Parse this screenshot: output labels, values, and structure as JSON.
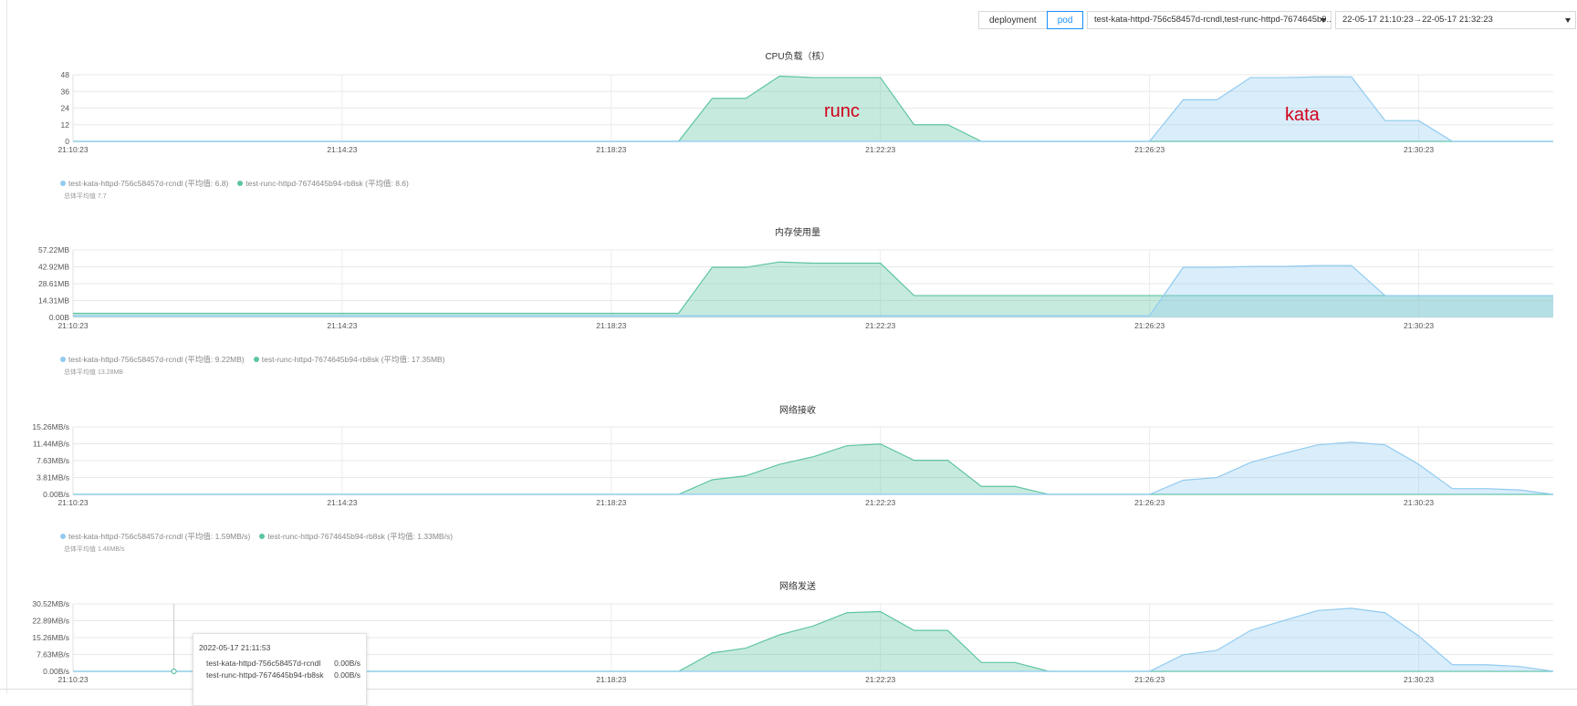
{
  "controls": {
    "segment": [
      {
        "label": "deployment",
        "active": false
      },
      {
        "label": "pod",
        "active": true
      }
    ],
    "pod_select": "test-kata-httpd-756c58457d-rcndl,test-runc-httpd-7674645b9...",
    "time_range": "22-05-17 21:10:23→22-05-17 21:32:23"
  },
  "colors": {
    "kata": "#91cbf0",
    "runc": "#5ec4a2"
  },
  "chart_data": [
    {
      "type": "area",
      "title": "CPU负载（核）",
      "x_minutes": [
        0,
        7.5,
        15,
        22.5,
        30,
        37.5,
        45,
        52.5,
        60,
        67.5,
        75,
        82.5,
        90,
        97.5,
        105,
        112.5,
        120,
        127.5,
        135,
        142.5,
        150,
        157.5,
        165,
        172.5,
        180,
        187.5,
        195,
        202.5,
        210,
        217.5,
        225,
        232.5,
        240,
        247.5,
        255,
        262.5,
        270,
        277.5,
        285,
        292.5,
        300,
        307.5,
        315,
        322.5,
        330
      ],
      "xticks": [
        "21:10:23",
        "21:14:23",
        "21:18:23",
        "21:22:23",
        "21:26:23",
        "21:30:23"
      ],
      "xtick_minutes": [
        0,
        4,
        8,
        12,
        16,
        20
      ],
      "yticks": [
        "0",
        "12",
        "24",
        "36",
        "48"
      ],
      "ymax": 48,
      "series": [
        {
          "name": "test-kata-httpd-756c58457d-rcndl",
          "values": []
        },
        {
          "name": "test-runc-httpd-7674645b94-rb8sk",
          "values": []
        }
      ],
      "kata_pts": [
        [
          0,
          0
        ],
        [
          16,
          0
        ],
        [
          16.5,
          30
        ],
        [
          17,
          30
        ],
        [
          17.5,
          46
        ],
        [
          18,
          46
        ],
        [
          18.5,
          46.5
        ],
        [
          19,
          46.5
        ],
        [
          19.5,
          15
        ],
        [
          20,
          15
        ],
        [
          20.5,
          0
        ],
        [
          22,
          0
        ]
      ],
      "runc_pts": [
        [
          0,
          0
        ],
        [
          9,
          0
        ],
        [
          9.5,
          31
        ],
        [
          10,
          31
        ],
        [
          10.5,
          47
        ],
        [
          11,
          46
        ],
        [
          11.5,
          46
        ],
        [
          12,
          46
        ],
        [
          12.5,
          12
        ],
        [
          13,
          12
        ],
        [
          13.5,
          0
        ],
        [
          22,
          0
        ]
      ],
      "legend": [
        {
          "text": "test-kata-httpd-756c58457d-rcndl (平均值: 6.8)"
        },
        {
          "text": "test-runc-httpd-7674645b94-rb8sk (平均值: 8.6)"
        }
      ],
      "overall_avg": "总体平均值 7.7"
    },
    {
      "type": "area",
      "title": "内存使用量",
      "xticks": [
        "21:10:23",
        "21:14:23",
        "21:18:23",
        "21:22:23",
        "21:26:23",
        "21:30:23"
      ],
      "xtick_minutes": [
        0,
        4,
        8,
        12,
        16,
        20
      ],
      "yticks": [
        "0.00B",
        "14.31MB",
        "28.61MB",
        "42.92MB",
        "57.22MB"
      ],
      "ymax": 57.22,
      "series": [
        {
          "name": "test-kata-httpd-756c58457d-rcndl"
        },
        {
          "name": "test-runc-httpd-7674645b94-rb8sk"
        }
      ],
      "kata_pts": [
        [
          0,
          1.5
        ],
        [
          16,
          1.5
        ],
        [
          16.5,
          42.5
        ],
        [
          17,
          42.5
        ],
        [
          17.5,
          43.2
        ],
        [
          18,
          43.2
        ],
        [
          18.5,
          44
        ],
        [
          19,
          44
        ],
        [
          19.5,
          18.5
        ],
        [
          22,
          18.5
        ]
      ],
      "runc_pts": [
        [
          0,
          3.5
        ],
        [
          9,
          3.5
        ],
        [
          9.5,
          42.5
        ],
        [
          10,
          42.5
        ],
        [
          10.5,
          47
        ],
        [
          11,
          46
        ],
        [
          11.5,
          46
        ],
        [
          12,
          46
        ],
        [
          12.5,
          18.5
        ],
        [
          22,
          18.5
        ]
      ],
      "legend": [
        {
          "text": "test-kata-httpd-756c58457d-rcndl (平均值: 9.22MB)"
        },
        {
          "text": "test-runc-httpd-7674645b94-rb8sk (平均值: 17.35MB)"
        }
      ],
      "overall_avg": "总体平均值 13.28MB"
    },
    {
      "type": "area",
      "title": "网络接收",
      "xticks": [
        "21:10:23",
        "21:14:23",
        "21:18:23",
        "21:22:23",
        "21:26:23",
        "21:30:23"
      ],
      "xtick_minutes": [
        0,
        4,
        8,
        12,
        16,
        20
      ],
      "yticks": [
        "0.00B/s",
        "3.81MB/s",
        "7.63MB/s",
        "11.44MB/s",
        "15.26MB/s"
      ],
      "ymax": 15.26,
      "series": [
        {
          "name": "test-kata-httpd-756c58457d-rcndl"
        },
        {
          "name": "test-runc-httpd-7674645b94-rb8sk"
        }
      ],
      "kata_pts": [
        [
          0,
          0
        ],
        [
          16,
          0
        ],
        [
          16.5,
          3.2
        ],
        [
          17,
          3.8
        ],
        [
          17.5,
          7.2
        ],
        [
          18,
          9.3
        ],
        [
          18.5,
          11.2
        ],
        [
          19,
          11.8
        ],
        [
          19.5,
          11.2
        ],
        [
          20,
          6.8
        ],
        [
          20.5,
          1.3
        ],
        [
          21,
          1.3
        ],
        [
          21.5,
          1
        ],
        [
          22,
          0
        ]
      ],
      "runc_pts": [
        [
          0,
          0
        ],
        [
          9,
          0
        ],
        [
          9.5,
          3.3
        ],
        [
          10,
          4.2
        ],
        [
          10.5,
          6.8
        ],
        [
          11,
          8.5
        ],
        [
          11.5,
          11
        ],
        [
          12,
          11.4
        ],
        [
          12.5,
          7.7
        ],
        [
          13,
          7.7
        ],
        [
          13.5,
          1.8
        ],
        [
          14,
          1.8
        ],
        [
          14.5,
          0
        ],
        [
          22,
          0
        ]
      ],
      "legend": [
        {
          "text": "test-kata-httpd-756c58457d-rcndl (平均值: 1.59MB/s)"
        },
        {
          "text": "test-runc-httpd-7674645b94-rb8sk (平均值: 1.33MB/s)"
        }
      ],
      "overall_avg": "总体平均值 1.46MB/s"
    },
    {
      "type": "area",
      "title": "网络发送",
      "xticks": [
        "21:10:23",
        "21:18:23",
        "21:22:23",
        "21:26:23",
        "21:30:23"
      ],
      "xtick_minutes": [
        0,
        8,
        12,
        16,
        20
      ],
      "yticks": [
        "0.00B/s",
        "7.63MB/s",
        "15.26MB/s",
        "22.89MB/s",
        "30.52MB/s"
      ],
      "ymax": 30.52,
      "series": [
        {
          "name": "test-kata-httpd-756c58457d-rcndl"
        },
        {
          "name": "test-runc-httpd-7674645b94-rb8sk"
        }
      ],
      "kata_pts": [
        [
          0,
          0
        ],
        [
          16,
          0
        ],
        [
          16.5,
          7.5
        ],
        [
          17,
          9.5
        ],
        [
          17.5,
          18.5
        ],
        [
          18,
          23
        ],
        [
          18.5,
          27.5
        ],
        [
          19,
          28.5
        ],
        [
          19.5,
          26.5
        ],
        [
          20,
          16
        ],
        [
          20.5,
          3
        ],
        [
          21,
          3
        ],
        [
          21.5,
          2.2
        ],
        [
          22,
          0
        ]
      ],
      "runc_pts": [
        [
          0,
          0
        ],
        [
          9,
          0
        ],
        [
          9.5,
          8.3
        ],
        [
          10,
          10.5
        ],
        [
          10.5,
          16.5
        ],
        [
          11,
          20.5
        ],
        [
          11.5,
          26.5
        ],
        [
          12,
          27
        ],
        [
          12.5,
          18.5
        ],
        [
          13,
          18.5
        ],
        [
          13.5,
          4
        ],
        [
          14,
          4
        ],
        [
          14.5,
          0
        ],
        [
          22,
          0
        ]
      ],
      "legend": [],
      "overall_avg": ""
    }
  ],
  "annotations": {
    "runc": "runc",
    "kata": "kata"
  },
  "tooltip": {
    "time": "2022-05-17 21:11:53",
    "rows": [
      {
        "name": "test-kata-httpd-756c58457d-rcndl",
        "value": "0.00B/s"
      },
      {
        "name": "test-runc-httpd-7674645b94-rb8sk",
        "value": "0.00B/s"
      }
    ]
  }
}
